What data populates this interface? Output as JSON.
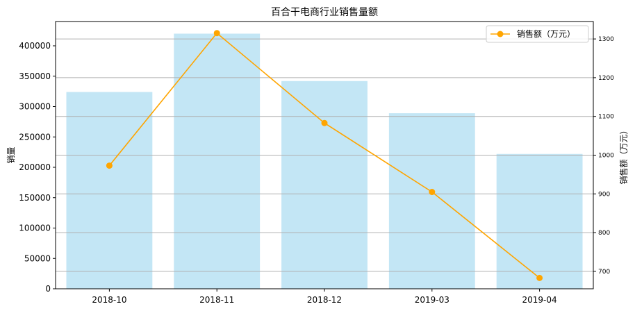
{
  "chart_data": {
    "type": "bar",
    "title": "百合干电商行业销售量额",
    "categories": [
      "2018-10",
      "2018-11",
      "2018-12",
      "2019-03",
      "2019-04"
    ],
    "series": [
      {
        "name": "",
        "kind": "bar",
        "axis": "left",
        "color": "#87ceeb",
        "values": [
          324000,
          420000,
          342000,
          289000,
          222000
        ]
      },
      {
        "name": "销售额（万元）",
        "kind": "line",
        "axis": "right",
        "color": "#ffa500",
        "values": [
          973,
          1315,
          1083,
          905,
          683
        ]
      }
    ],
    "ylabel": "销量",
    "y2label": "销售额（万元）",
    "ylim": [
      0,
      440000
    ],
    "y2lim": [
      655,
      1345
    ],
    "yticks": [
      0,
      50000,
      100000,
      150000,
      200000,
      250000,
      300000,
      350000,
      400000
    ],
    "y2ticks": [
      700,
      800,
      900,
      1000,
      1100,
      1200,
      1300
    ],
    "grid": "horizontal",
    "legend_position": "top-right"
  }
}
